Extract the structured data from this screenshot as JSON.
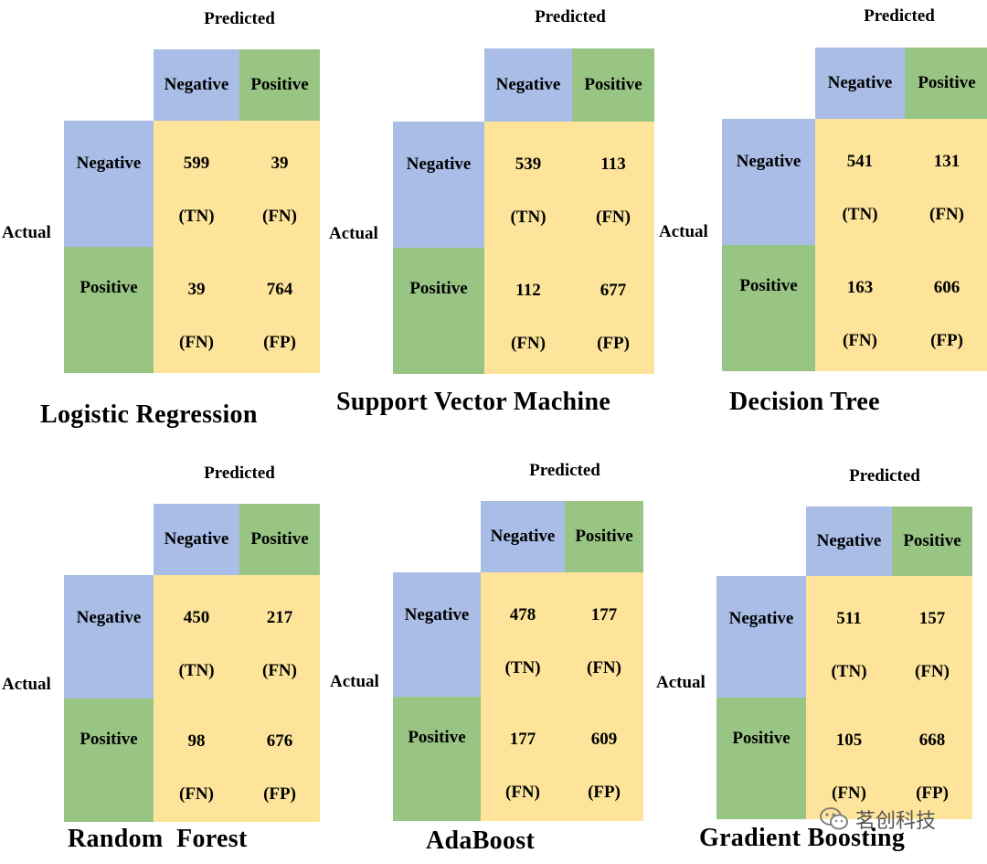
{
  "labels": {
    "predicted": "Predicted",
    "actual": "Actual",
    "negative": "Negative",
    "positive": "Positive"
  },
  "colors": {
    "negative_header": "#a9bde6",
    "positive_header": "#99c584",
    "matrix_body": "#fde49a"
  },
  "panels": [
    {
      "title": "Logistic Regression",
      "cells": [
        {
          "value": "599",
          "tag": "(TN)"
        },
        {
          "value": "39",
          "tag": "(FN)"
        },
        {
          "value": "39",
          "tag": "(FN)"
        },
        {
          "value": "764",
          "tag": "(FP)"
        }
      ]
    },
    {
      "title": "Support Vector Machine",
      "cells": [
        {
          "value": "539",
          "tag": "(TN)"
        },
        {
          "value": "113",
          "tag": "(FN)"
        },
        {
          "value": "112",
          "tag": "(FN)"
        },
        {
          "value": "677",
          "tag": "(FP)"
        }
      ]
    },
    {
      "title": "Decision Tree",
      "cells": [
        {
          "value": "541",
          "tag": "(TN)"
        },
        {
          "value": "131",
          "tag": "(FN)"
        },
        {
          "value": "163",
          "tag": "(FN)"
        },
        {
          "value": "606",
          "tag": "(FP)"
        }
      ]
    },
    {
      "title": "Random  Forest",
      "cells": [
        {
          "value": "450",
          "tag": "(TN)"
        },
        {
          "value": "217",
          "tag": "(FN)"
        },
        {
          "value": "98",
          "tag": "(FN)"
        },
        {
          "value": "676",
          "tag": "(FP)"
        }
      ]
    },
    {
      "title": "AdaBoost",
      "cells": [
        {
          "value": "478",
          "tag": "(TN)"
        },
        {
          "value": "177",
          "tag": "(FN)"
        },
        {
          "value": "177",
          "tag": "(FN)"
        },
        {
          "value": "609",
          "tag": "(FP)"
        }
      ]
    },
    {
      "title": "Gradient Boosting",
      "cells": [
        {
          "value": "511",
          "tag": "(TN)"
        },
        {
          "value": "157",
          "tag": "(FN)"
        },
        {
          "value": "105",
          "tag": "(FN)"
        },
        {
          "value": "668",
          "tag": "(FP)"
        }
      ]
    }
  ],
  "watermark": {
    "text": "茗创科技",
    "icon": "wechat-icon"
  }
}
